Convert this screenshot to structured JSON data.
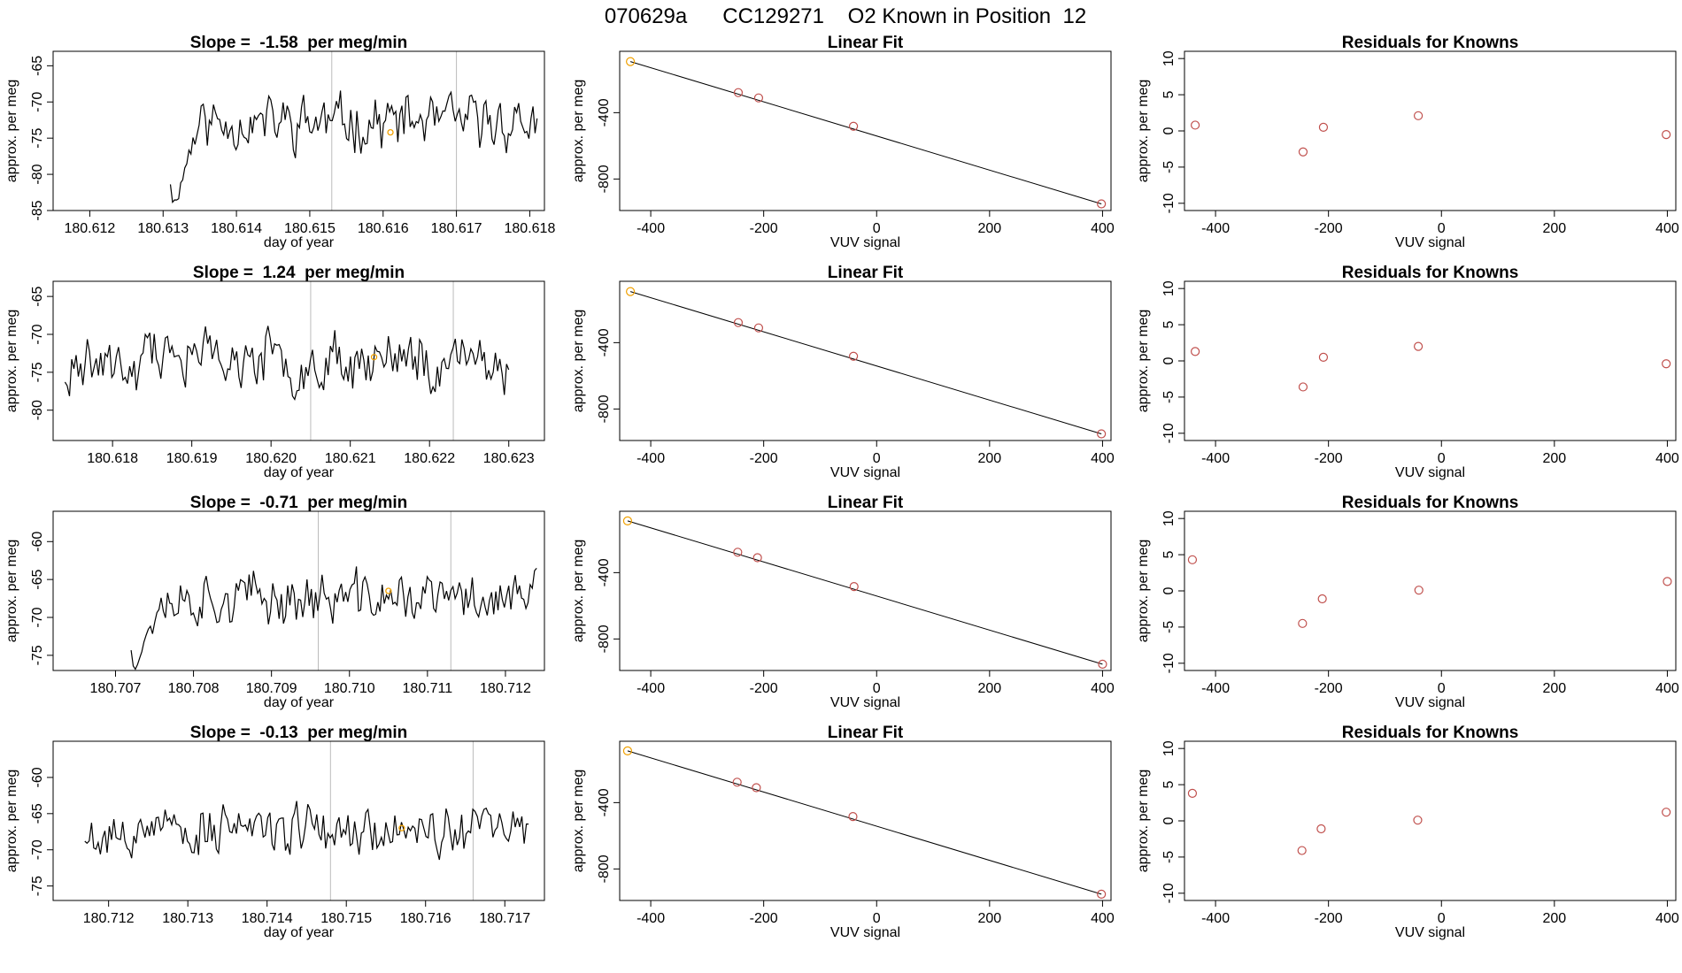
{
  "figure_title": "070629a      CC129271    O2 Known in Position  12",
  "colors": {
    "line": "#000000",
    "points": "#c0504d",
    "highlight": "#f0a000",
    "guide": "#bbbbbb"
  },
  "chart_data": [
    {
      "type": "line",
      "row": 1,
      "col": 1,
      "title": "Slope =  -1.58  per meg/min",
      "xlabel": "day of year",
      "ylabel": "approx. per meg",
      "xlim": [
        180.6115,
        180.6182
      ],
      "ylim": [
        -85,
        -63
      ],
      "xticks": [
        180.612,
        180.613,
        180.614,
        180.615,
        180.616,
        180.617,
        180.618
      ],
      "xtick_labels": [
        "180.612",
        "180.613",
        "180.614",
        "180.615",
        "180.616",
        "180.617",
        "180.618"
      ],
      "yticks": [
        -85,
        -80,
        -75,
        -70,
        -65
      ],
      "ytick_labels": [
        "-85",
        "-80",
        "-75",
        "-70",
        "-65"
      ],
      "vlines": [
        180.6153,
        180.617
      ],
      "trace": {
        "x_start": 180.6131,
        "x_end": 180.6181,
        "n": 180,
        "base": -72.8,
        "amp": 4.6,
        "start_low": -86,
        "ramp": 0.08,
        "seed": 11
      },
      "marker": {
        "x": 180.6161,
        "y": -74.2
      }
    },
    {
      "type": "scatter",
      "row": 1,
      "col": 2,
      "title": "Linear Fit",
      "xlabel": "VUV signal",
      "ylabel": "approx. per meg",
      "xlim": [
        -455,
        415
      ],
      "ylim": [
        -990,
        -30
      ],
      "xticks": [
        -400,
        -200,
        0,
        200,
        400
      ],
      "xtick_labels": [
        "-400",
        "-200",
        "0",
        "200",
        "400"
      ],
      "yticks": [
        -400,
        -800
      ],
      "ytick_labels": [
        "-400",
        "-800"
      ],
      "x": [
        -436,
        -245,
        -209,
        -41,
        398
      ],
      "y": [
        -92,
        -279,
        -311,
        -482,
        -950
      ],
      "fit": [
        [
          -436,
          -92
        ],
        [
          398,
          -950
        ]
      ]
    },
    {
      "type": "scatter",
      "row": 1,
      "col": 3,
      "title": "Residuals for Knowns",
      "xlabel": "VUV signal",
      "ylabel": "approx. per meg",
      "xlim": [
        -455,
        415
      ],
      "ylim": [
        -11,
        11
      ],
      "xticks": [
        -400,
        -200,
        0,
        200,
        400
      ],
      "xtick_labels": [
        "-400",
        "-200",
        "0",
        "200",
        "400"
      ],
      "yticks": [
        -10,
        -5,
        0,
        5,
        10
      ],
      "ytick_labels": [
        "-10",
        "-5",
        "0",
        "5",
        "10"
      ],
      "x": [
        -436,
        -245,
        -209,
        -41,
        398
      ],
      "y": [
        0.8,
        -2.9,
        0.5,
        2.1,
        -0.5
      ]
    },
    {
      "type": "line",
      "row": 2,
      "col": 1,
      "title": "Slope =  1.24  per meg/min",
      "xlabel": "day of year",
      "ylabel": "approx. per meg",
      "xlim": [
        180.61725,
        180.62345
      ],
      "ylim": [
        -84,
        -63
      ],
      "xticks": [
        180.618,
        180.619,
        180.62,
        180.621,
        180.622,
        180.623
      ],
      "xtick_labels": [
        "180.618",
        "180.619",
        "180.620",
        "180.621",
        "180.622",
        "180.623"
      ],
      "yticks": [
        -80,
        -75,
        -70,
        -65
      ],
      "ytick_labels": [
        "-80",
        "-75",
        "-70",
        "-65"
      ],
      "vlines": [
        180.6205,
        180.6223
      ],
      "trace": {
        "x_start": 180.6174,
        "x_end": 180.623,
        "n": 200,
        "base": -73.5,
        "amp": 4.8,
        "start_low": -78,
        "ramp": 0.0,
        "seed": 23
      },
      "marker": {
        "x": 180.6213,
        "y": -73.0
      }
    },
    {
      "type": "scatter",
      "row": 2,
      "col": 2,
      "title": "Linear Fit",
      "xlabel": "VUV signal",
      "ylabel": "approx. per meg",
      "xlim": [
        -455,
        415
      ],
      "ylim": [
        -990,
        -30
      ],
      "xticks": [
        -400,
        -200,
        0,
        200,
        400
      ],
      "xtick_labels": [
        "-400",
        "-200",
        "0",
        "200",
        "400"
      ],
      "yticks": [
        -400,
        -800
      ],
      "ytick_labels": [
        "-400",
        "-800"
      ],
      "x": [
        -436,
        -245,
        -209,
        -41,
        398
      ],
      "y": [
        -92,
        -279,
        -311,
        -482,
        -950
      ],
      "fit": [
        [
          -436,
          -92
        ],
        [
          398,
          -950
        ]
      ]
    },
    {
      "type": "scatter",
      "row": 2,
      "col": 3,
      "title": "Residuals for Knowns",
      "xlabel": "VUV signal",
      "ylabel": "approx. per meg",
      "xlim": [
        -455,
        415
      ],
      "ylim": [
        -11,
        11
      ],
      "xticks": [
        -400,
        -200,
        0,
        200,
        400
      ],
      "xtick_labels": [
        "-400",
        "-200",
        "0",
        "200",
        "400"
      ],
      "yticks": [
        -10,
        -5,
        0,
        5,
        10
      ],
      "ytick_labels": [
        "-10",
        "-5",
        "0",
        "5",
        "10"
      ],
      "x": [
        -436,
        -245,
        -209,
        -41,
        398
      ],
      "y": [
        1.3,
        -3.6,
        0.5,
        2.0,
        -0.4
      ]
    },
    {
      "type": "line",
      "row": 3,
      "col": 1,
      "title": "Slope =  -0.71  per meg/min",
      "xlabel": "day of year",
      "ylabel": "approx. per meg",
      "xlim": [
        180.7062,
        180.7125
      ],
      "ylim": [
        -77,
        -56
      ],
      "xticks": [
        180.707,
        180.708,
        180.709,
        180.71,
        180.711,
        180.712
      ],
      "xtick_labels": [
        "180.707",
        "180.708",
        "180.709",
        "180.710",
        "180.711",
        "180.712"
      ],
      "yticks": [
        -75,
        -70,
        -65,
        -60
      ],
      "ytick_labels": [
        "-75",
        "-70",
        "-65",
        "-60"
      ],
      "vlines": [
        180.7096,
        180.7113
      ],
      "trace": {
        "x_start": 180.7072,
        "x_end": 180.7124,
        "n": 190,
        "base": -67.5,
        "amp": 4.2,
        "start_low": -78,
        "ramp": 0.08,
        "seed": 37
      },
      "marker": {
        "x": 180.7105,
        "y": -66.5
      }
    },
    {
      "type": "scatter",
      "row": 3,
      "col": 2,
      "title": "Linear Fit",
      "xlabel": "VUV signal",
      "ylabel": "approx. per meg",
      "xlim": [
        -455,
        415
      ],
      "ylim": [
        -990,
        -30
      ],
      "xticks": [
        -400,
        -200,
        0,
        200,
        400
      ],
      "xtick_labels": [
        "-400",
        "-200",
        "0",
        "200",
        "400"
      ],
      "yticks": [
        -400,
        -800
      ],
      "ytick_labels": [
        "-400",
        "-800"
      ],
      "x": [
        -441,
        -246,
        -211,
        -40,
        400
      ],
      "y": [
        -88,
        -277,
        -310,
        -484,
        -952
      ],
      "fit": [
        [
          -441,
          -88
        ],
        [
          400,
          -952
        ]
      ]
    },
    {
      "type": "scatter",
      "row": 3,
      "col": 3,
      "title": "Residuals for Knowns",
      "xlabel": "VUV signal",
      "ylabel": "approx. per meg",
      "xlim": [
        -455,
        415
      ],
      "ylim": [
        -11,
        11
      ],
      "xticks": [
        -400,
        -200,
        0,
        200,
        400
      ],
      "xtick_labels": [
        "-400",
        "-200",
        "0",
        "200",
        "400"
      ],
      "yticks": [
        -10,
        -5,
        0,
        5,
        10
      ],
      "ytick_labels": [
        "-10",
        "-5",
        "0",
        "5",
        "10"
      ],
      "x": [
        -441,
        -246,
        -211,
        -40,
        400
      ],
      "y": [
        4.3,
        -4.5,
        -1.1,
        0.1,
        1.3
      ]
    },
    {
      "type": "line",
      "row": 4,
      "col": 1,
      "title": "Slope =  -0.13  per meg/min",
      "xlabel": "day of year",
      "ylabel": "approx. per meg",
      "xlim": [
        180.7113,
        180.7175
      ],
      "ylim": [
        -77,
        -55
      ],
      "xticks": [
        180.712,
        180.713,
        180.714,
        180.715,
        180.716,
        180.717
      ],
      "xtick_labels": [
        "180.712",
        "180.713",
        "180.714",
        "180.715",
        "180.716",
        "180.717"
      ],
      "yticks": [
        -75,
        -70,
        -65,
        -60
      ],
      "ytick_labels": [
        "-75",
        "-70",
        "-65",
        "-60"
      ],
      "vlines": [
        180.7148,
        180.7166
      ],
      "trace": {
        "x_start": 180.7117,
        "x_end": 180.7173,
        "n": 200,
        "base": -67.2,
        "amp": 4.3,
        "start_low": -68.5,
        "ramp": 0.0,
        "seed": 53
      },
      "marker": {
        "x": 180.7157,
        "y": -67.0
      }
    },
    {
      "type": "scatter",
      "row": 4,
      "col": 2,
      "title": "Linear Fit",
      "xlabel": "VUV signal",
      "ylabel": "approx. per meg",
      "xlim": [
        -455,
        415
      ],
      "ylim": [
        -990,
        -30
      ],
      "xticks": [
        -400,
        -200,
        0,
        200,
        400
      ],
      "xtick_labels": [
        "-400",
        "-200",
        "0",
        "200",
        "400"
      ],
      "yticks": [
        -400,
        -800
      ],
      "ytick_labels": [
        "-400",
        "-800"
      ],
      "x": [
        -441,
        -247,
        -213,
        -42,
        398
      ],
      "y": [
        -88,
        -277,
        -310,
        -484,
        -952
      ],
      "fit": [
        [
          -441,
          -88
        ],
        [
          398,
          -952
        ]
      ]
    },
    {
      "type": "scatter",
      "row": 4,
      "col": 3,
      "title": "Residuals for Knowns",
      "xlabel": "VUV signal",
      "ylabel": "approx. per meg",
      "xlim": [
        -455,
        415
      ],
      "ylim": [
        -11,
        11
      ],
      "xticks": [
        -400,
        -200,
        0,
        200,
        400
      ],
      "xtick_labels": [
        "-400",
        "-200",
        "0",
        "200",
        "400"
      ],
      "yticks": [
        -10,
        -5,
        0,
        5,
        10
      ],
      "ytick_labels": [
        "-10",
        "-5",
        "0",
        "5",
        "10"
      ],
      "x": [
        -441,
        -247,
        -213,
        -42,
        398
      ],
      "y": [
        3.8,
        -4.1,
        -1.1,
        0.1,
        1.2
      ]
    }
  ]
}
